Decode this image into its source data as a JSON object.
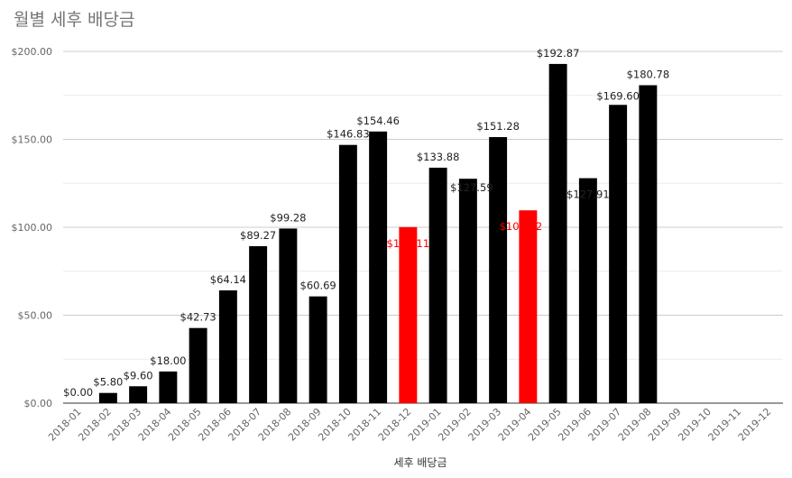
{
  "chart_data": {
    "type": "bar",
    "title": "월별 세후 배당금",
    "xlabel": "세후 배당금",
    "ylabel": "",
    "ylim": [
      0,
      200
    ],
    "yticks": [
      0,
      50,
      100,
      150,
      200
    ],
    "ytick_labels": [
      "$0.00",
      "$50.00",
      "$100.00",
      "$150.00",
      "$200.00"
    ],
    "grid": true,
    "legend": "none",
    "categories": [
      "2018-01",
      "2018-02",
      "2018-03",
      "2018-04",
      "2018-05",
      "2018-06",
      "2018-07",
      "2018-08",
      "2018-09",
      "2018-10",
      "2018-11",
      "2018-12",
      "2019-01",
      "2019-02",
      "2019-03",
      "2019-04",
      "2019-05",
      "2019-06",
      "2019-07",
      "2019-08",
      "2019-09",
      "2019-10",
      "2019-11",
      "2019-12"
    ],
    "values": [
      0.0,
      5.8,
      9.6,
      18.0,
      42.73,
      64.14,
      89.27,
      99.28,
      60.69,
      146.83,
      154.46,
      100.11,
      133.88,
      127.59,
      151.28,
      109.62,
      192.87,
      127.91,
      169.6,
      180.78,
      null,
      null,
      null,
      null
    ],
    "data_labels": [
      "$0.00",
      "$5.80",
      "$9.60",
      "$18.00",
      "$42.73",
      "$64.14",
      "$89.27",
      "$99.28",
      "$60.69",
      "$146.83",
      "$154.46",
      "$100.11",
      "$133.88",
      "$127.59",
      "$151.28",
      "$109.62",
      "$192.87",
      "$127.91",
      "$169.60",
      "$180.78",
      "",
      "",
      "",
      ""
    ],
    "highlighted": [
      "2018-12",
      "2019-04"
    ],
    "colors": {
      "bar": "#000000",
      "highlight": "#ff0000",
      "grid": "#cccccc",
      "minor_grid": "#ebebeb"
    }
  }
}
